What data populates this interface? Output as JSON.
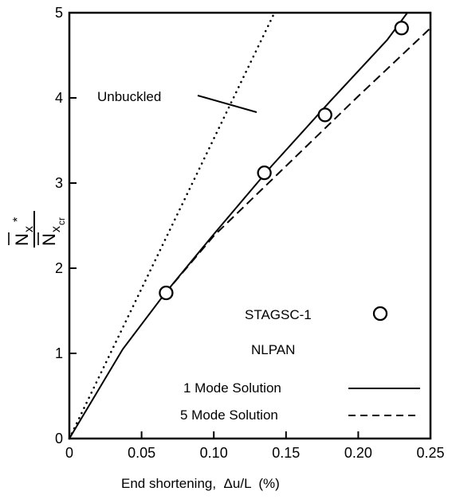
{
  "chart_data": {
    "type": "line",
    "xlabel": "End shortening,  Δu/L  (%)",
    "ylabel": {
      "numerator_base": "N",
      "numerator_sub": "x",
      "numerator_sup": "*",
      "denominator_base": "N",
      "denominator_sub": "x",
      "denominator_subsub": "cr"
    },
    "xlim": [
      0,
      0.25
    ],
    "ylim": [
      0,
      5
    ],
    "x_ticks": [
      "0",
      "0.05",
      "0.10",
      "0.15",
      "0.20",
      "0.25"
    ],
    "y_ticks": [
      "0",
      "1",
      "2",
      "3",
      "4",
      "5"
    ],
    "grid": false,
    "series": [
      {
        "name": "Unbuckled",
        "style": "dotted",
        "x": [
          0,
          0.142
        ],
        "y": [
          0,
          5.0
        ]
      },
      {
        "name": "1 Mode Solution",
        "style": "solid",
        "x": [
          0,
          0.037,
          0.066,
          0.1,
          0.14,
          0.18,
          0.22,
          0.234
        ],
        "y": [
          0,
          1.05,
          1.7,
          2.4,
          3.2,
          3.95,
          4.68,
          5.0
        ]
      },
      {
        "name": "5 Mode Solution",
        "style": "dashed",
        "x": [
          0.066,
          0.1,
          0.15,
          0.2,
          0.25
        ],
        "y": [
          1.7,
          2.38,
          3.2,
          4.02,
          4.82
        ]
      },
      {
        "name": "STAGSC-1",
        "style": "markers",
        "x": [
          0.067,
          0.135,
          0.177,
          0.23
        ],
        "y": [
          1.71,
          3.12,
          3.8,
          4.82
        ]
      }
    ],
    "annotations": {
      "unbuckled": "Unbuckled",
      "stagsc": "STAGSC-1",
      "nlpan": "NLPAN",
      "one_mode": "1 Mode Solution",
      "five_mode": "5 Mode Solution"
    }
  }
}
